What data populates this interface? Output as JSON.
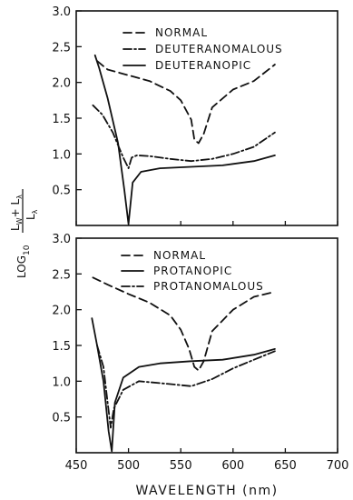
{
  "chart_data": [
    {
      "type": "line",
      "panel": "top",
      "xlim": [
        450,
        700
      ],
      "ylim": [
        0,
        3.0
      ],
      "yticks": [
        "3.0",
        "2.5",
        "2.0",
        "1.5",
        "1.0",
        "0.5"
      ],
      "series": [
        {
          "name": "NORMAL",
          "style": "dashed",
          "points": [
            [
              470,
              2.3
            ],
            [
              480,
              2.18
            ],
            [
              500,
              2.1
            ],
            [
              520,
              2.02
            ],
            [
              540,
              1.88
            ],
            [
              550,
              1.75
            ],
            [
              560,
              1.48
            ],
            [
              563,
              1.2
            ],
            [
              567,
              1.15
            ],
            [
              572,
              1.28
            ],
            [
              580,
              1.65
            ],
            [
              600,
              1.9
            ],
            [
              620,
              2.02
            ],
            [
              640,
              2.25
            ]
          ]
        },
        {
          "name": "DEUTERANOMALOUS",
          "style": "dashdot",
          "points": [
            [
              466,
              1.68
            ],
            [
              475,
              1.55
            ],
            [
              485,
              1.3
            ],
            [
              495,
              0.95
            ],
            [
              500,
              0.8
            ],
            [
              503,
              0.95
            ],
            [
              508,
              0.98
            ],
            [
              520,
              0.97
            ],
            [
              540,
              0.93
            ],
            [
              560,
              0.9
            ],
            [
              580,
              0.93
            ],
            [
              600,
              1.0
            ],
            [
              620,
              1.1
            ],
            [
              640,
              1.3
            ]
          ]
        },
        {
          "name": "DEUTERANOPIC",
          "style": "solid",
          "points": [
            [
              468,
              2.38
            ],
            [
              472,
              2.2
            ],
            [
              480,
              1.78
            ],
            [
              490,
              1.15
            ],
            [
              496,
              0.5
            ],
            [
              500,
              0.02
            ],
            [
              504,
              0.6
            ],
            [
              512,
              0.75
            ],
            [
              530,
              0.8
            ],
            [
              560,
              0.82
            ],
            [
              590,
              0.84
            ],
            [
              620,
              0.9
            ],
            [
              640,
              0.98
            ]
          ]
        }
      ]
    },
    {
      "type": "line",
      "panel": "bottom",
      "xlim": [
        450,
        700
      ],
      "ylim": [
        0,
        3.0
      ],
      "xticks": [
        "450",
        "500",
        "550",
        "600",
        "650",
        "700"
      ],
      "yticks": [
        "3.0",
        "2.5",
        "2.0",
        "1.5",
        "1.0",
        "0.5"
      ],
      "xlabel": "WAVELENGTH (nm)",
      "series": [
        {
          "name": "NORMAL",
          "style": "dashed",
          "points": [
            [
              466,
              2.45
            ],
            [
              480,
              2.35
            ],
            [
              500,
              2.22
            ],
            [
              520,
              2.1
            ],
            [
              540,
              1.92
            ],
            [
              550,
              1.72
            ],
            [
              558,
              1.45
            ],
            [
              563,
              1.2
            ],
            [
              567,
              1.15
            ],
            [
              572,
              1.28
            ],
            [
              580,
              1.7
            ],
            [
              600,
              2.0
            ],
            [
              620,
              2.18
            ],
            [
              640,
              2.25
            ]
          ]
        },
        {
          "name": "PROTANOPIC",
          "style": "solid",
          "points": [
            [
              465,
              1.88
            ],
            [
              470,
              1.5
            ],
            [
              476,
              1.0
            ],
            [
              481,
              0.3
            ],
            [
              484,
              0.02
            ],
            [
              487,
              0.7
            ],
            [
              495,
              1.05
            ],
            [
              510,
              1.2
            ],
            [
              530,
              1.25
            ],
            [
              560,
              1.28
            ],
            [
              590,
              1.3
            ],
            [
              620,
              1.37
            ],
            [
              640,
              1.45
            ]
          ]
        },
        {
          "name": "PROTANOMALOUS",
          "style": "dashdot",
          "points": [
            [
              470,
              1.5
            ],
            [
              476,
              1.2
            ],
            [
              480,
              0.7
            ],
            [
              483,
              0.35
            ],
            [
              486,
              0.62
            ],
            [
              495,
              0.88
            ],
            [
              510,
              1.0
            ],
            [
              540,
              0.96
            ],
            [
              560,
              0.93
            ],
            [
              580,
              1.03
            ],
            [
              600,
              1.18
            ],
            [
              620,
              1.3
            ],
            [
              640,
              1.42
            ]
          ]
        }
      ]
    }
  ],
  "ylabel": {
    "log": "LOG",
    "sub": "10",
    "num": "L",
    "num_sub": "W",
    "num_plus": "+ L",
    "num_plus_sub": "λ",
    "den": "L",
    "den_sub": "λ"
  }
}
